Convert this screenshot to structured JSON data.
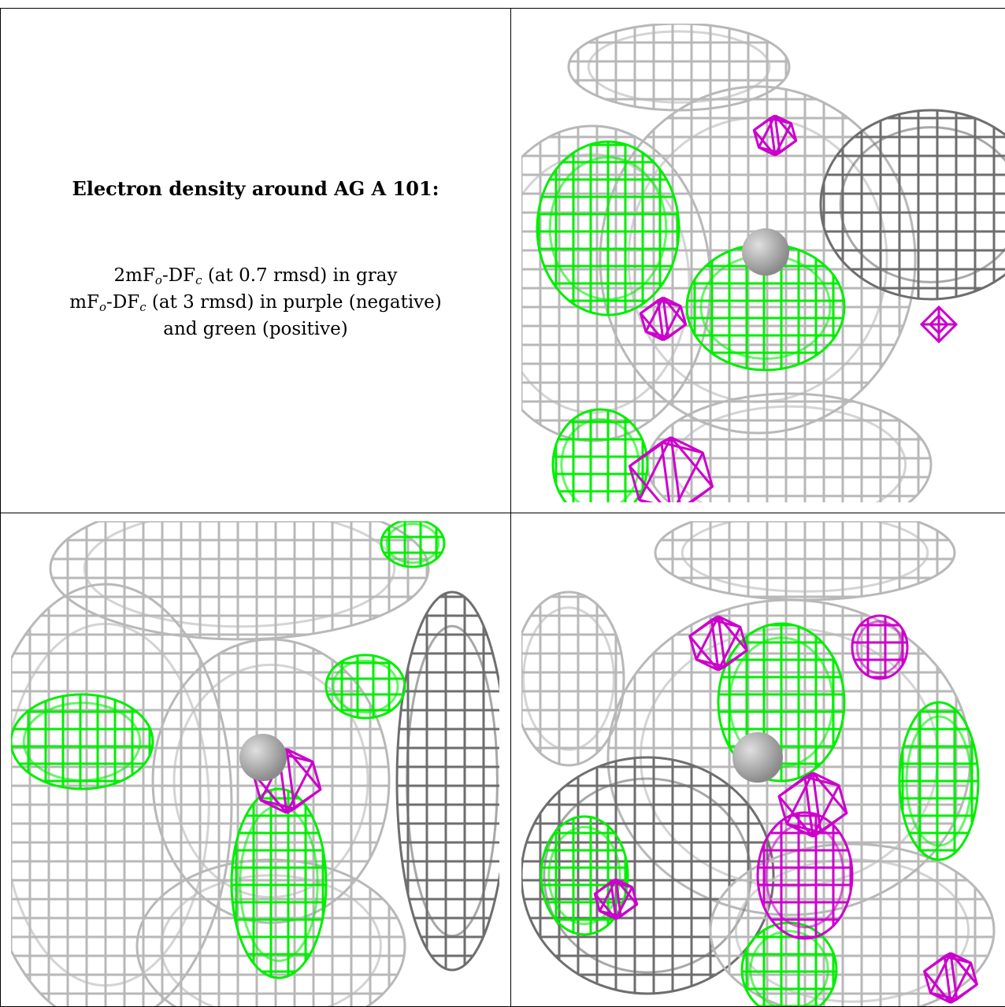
{
  "caption": {
    "title": "Electron density around AG A 101:",
    "line1": {
      "prefix": "2mF",
      "sub1": "o",
      "mid": "-DF",
      "sub2": "c",
      "suffix": " (at 0.7 rmsd) in gray"
    },
    "line2": {
      "prefix": "mF",
      "sub1": "o",
      "mid": "-DF",
      "sub2": "c",
      "suffix": " (at 3 rmsd) in purple (negative)"
    },
    "line3": "and green (positive)"
  },
  "colors": {
    "gray_mesh": "#b8b8b8",
    "dark_mesh": "#6e6e6e",
    "negative_mesh": "#cc00cc",
    "positive_mesh": "#00ee00",
    "atom": "#8a8a8a"
  },
  "panels": [
    {
      "view": "top-right"
    },
    {
      "view": "bottom-left"
    },
    {
      "view": "bottom-right"
    }
  ]
}
